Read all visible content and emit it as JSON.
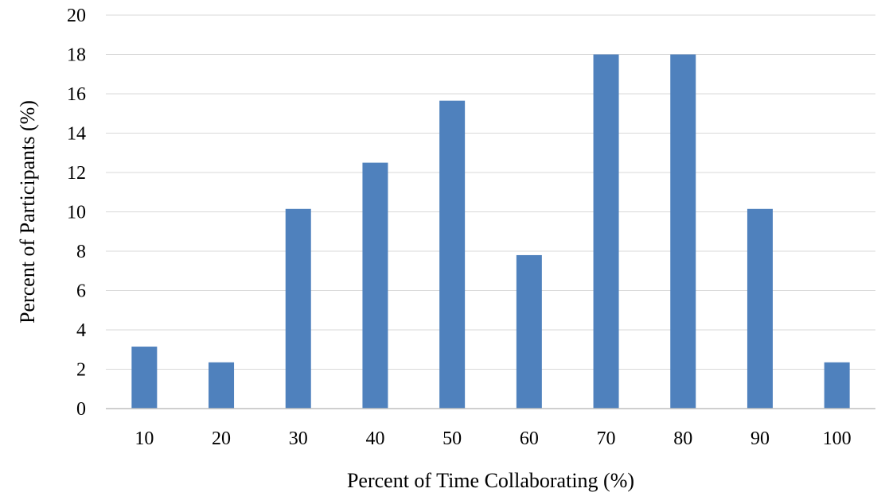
{
  "chart_data": {
    "type": "bar",
    "title": "",
    "xlabel": "Percent of Time Collaborating (%)",
    "ylabel": "Percent of Participants (%)",
    "categories": [
      "10",
      "20",
      "30",
      "40",
      "50",
      "60",
      "70",
      "80",
      "90",
      "100"
    ],
    "series": [
      {
        "values": [
          3.15,
          2.35,
          10.15,
          12.5,
          15.65,
          7.8,
          18.0,
          18.0,
          10.15,
          2.35
        ]
      }
    ],
    "ylim": [
      0,
      20
    ],
    "yticks": [
      "0",
      "2",
      "4",
      "6",
      "8",
      "10",
      "12",
      "14",
      "16",
      "18",
      "20"
    ],
    "grid": true,
    "legend": "none",
    "colors": {
      "bar": "#4F81BD",
      "grid": "#D9D9D9",
      "axis": "#BFBFBF",
      "text": "#000000"
    }
  }
}
